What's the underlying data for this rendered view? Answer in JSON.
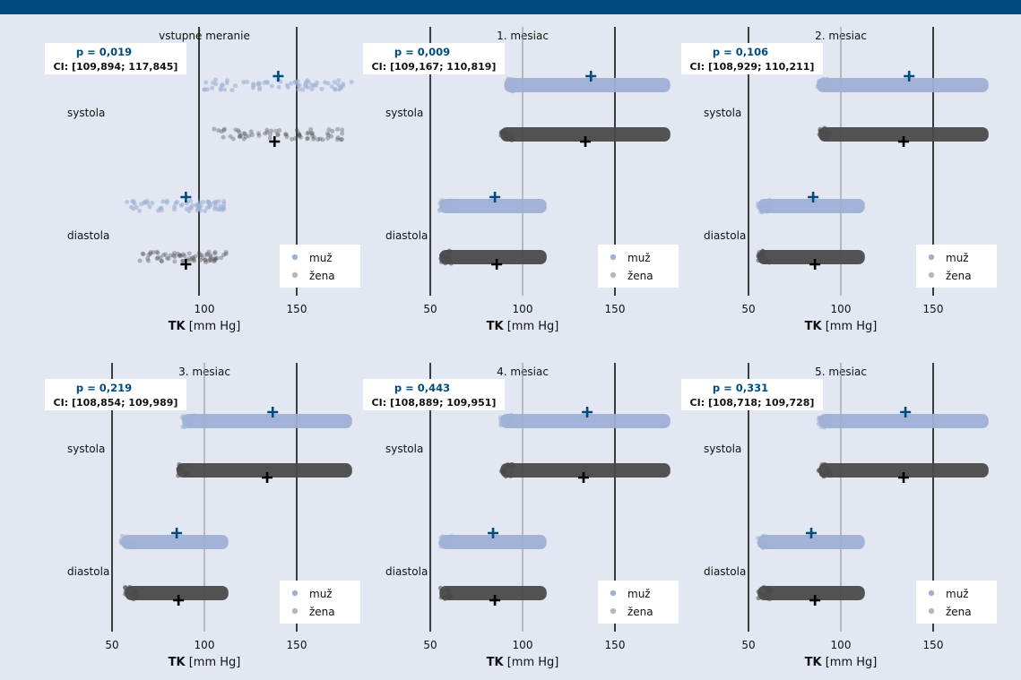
{
  "header_text": "",
  "axis": {
    "label_bold": "TK",
    "label_rest": " [mm Hg]",
    "xlim": [
      50,
      180
    ]
  },
  "legend": [
    "muž",
    "žena"
  ],
  "row_labels": [
    "systola",
    "diastola"
  ],
  "colors": {
    "male": "#9fb0d6",
    "female": "#4a4a4a",
    "accent": "#004a7f",
    "bg": "#e3e7f1"
  },
  "chart_data": [
    {
      "type": "scatter",
      "title": "vstupné meranie",
      "p": "p = 0,019",
      "ci": "CI: [109,894; 117,845]",
      "xlim": [
        85,
        180
      ],
      "xticks": [
        100,
        150
      ],
      "dense": false,
      "series": [
        {
          "name": "muž",
          "group": "systola",
          "range": [
            100,
            180
          ],
          "mean": 140
        },
        {
          "name": "žena",
          "group": "systola",
          "range": [
            105,
            175
          ],
          "mean": 138
        },
        {
          "name": "muž",
          "group": "diastola",
          "range": [
            58,
            113
          ],
          "mean": 90
        },
        {
          "name": "žena",
          "group": "diastola",
          "range": [
            65,
            112
          ],
          "mean": 90
        }
      ]
    },
    {
      "type": "scatter",
      "title": "1. mesiac",
      "p": "p = 0,009",
      "ci": "CI: [109,167; 110,819]",
      "xlim": [
        50,
        180
      ],
      "xticks": [
        50,
        100,
        150
      ],
      "dense": true,
      "series": [
        {
          "name": "muž",
          "group": "systola",
          "range": [
            90,
            180
          ],
          "mean": 137
        },
        {
          "name": "žena",
          "group": "systola",
          "range": [
            88,
            180
          ],
          "mean": 134
        },
        {
          "name": "muž",
          "group": "diastola",
          "range": [
            55,
            113
          ],
          "mean": 85
        },
        {
          "name": "žena",
          "group": "diastola",
          "range": [
            55,
            113
          ],
          "mean": 86
        }
      ]
    },
    {
      "type": "scatter",
      "title": "2. mesiac",
      "p": "p = 0,106",
      "ci": "CI: [108,929; 110,211]",
      "xlim": [
        50,
        180
      ],
      "xticks": [
        50,
        100,
        150
      ],
      "dense": true,
      "series": [
        {
          "name": "muž",
          "group": "systola",
          "range": [
            87,
            180
          ],
          "mean": 137
        },
        {
          "name": "žena",
          "group": "systola",
          "range": [
            88,
            180
          ],
          "mean": 134
        },
        {
          "name": "muž",
          "group": "diastola",
          "range": [
            55,
            113
          ],
          "mean": 85
        },
        {
          "name": "žena",
          "group": "diastola",
          "range": [
            55,
            113
          ],
          "mean": 86
        }
      ]
    },
    {
      "type": "scatter",
      "title": "3. mesiac",
      "p": "p = 0,219",
      "ci": "CI: [108,854; 109,989]",
      "xlim": [
        50,
        180
      ],
      "xticks": [
        50,
        100,
        150
      ],
      "dense": true,
      "series": [
        {
          "name": "muž",
          "group": "systola",
          "range": [
            88,
            180
          ],
          "mean": 137
        },
        {
          "name": "žena",
          "group": "systola",
          "range": [
            85,
            180
          ],
          "mean": 134
        },
        {
          "name": "muž",
          "group": "diastola",
          "range": [
            55,
            113
          ],
          "mean": 85
        },
        {
          "name": "žena",
          "group": "diastola",
          "range": [
            57,
            113
          ],
          "mean": 86
        }
      ]
    },
    {
      "type": "scatter",
      "title": "4. mesiac",
      "p": "p = 0,443",
      "ci": "CI: [108,889; 109,951]",
      "xlim": [
        50,
        180
      ],
      "xticks": [
        50,
        100,
        150
      ],
      "dense": true,
      "series": [
        {
          "name": "muž",
          "group": "systola",
          "range": [
            88,
            180
          ],
          "mean": 135
        },
        {
          "name": "žena",
          "group": "systola",
          "range": [
            88,
            180
          ],
          "mean": 133
        },
        {
          "name": "muž",
          "group": "diastola",
          "range": [
            55,
            113
          ],
          "mean": 84
        },
        {
          "name": "žena",
          "group": "diastola",
          "range": [
            55,
            113
          ],
          "mean": 85
        }
      ]
    },
    {
      "type": "scatter",
      "title": "5. mesiac",
      "p": "p = 0,331",
      "ci": "CI: [108,718; 109,728]",
      "xlim": [
        50,
        180
      ],
      "xticks": [
        50,
        100,
        150
      ],
      "dense": true,
      "series": [
        {
          "name": "muž",
          "group": "systola",
          "range": [
            88,
            180
          ],
          "mean": 135
        },
        {
          "name": "žena",
          "group": "systola",
          "range": [
            88,
            180
          ],
          "mean": 134
        },
        {
          "name": "muž",
          "group": "diastola",
          "range": [
            55,
            113
          ],
          "mean": 84
        },
        {
          "name": "žena",
          "group": "diastola",
          "range": [
            55,
            113
          ],
          "mean": 86
        }
      ]
    }
  ]
}
